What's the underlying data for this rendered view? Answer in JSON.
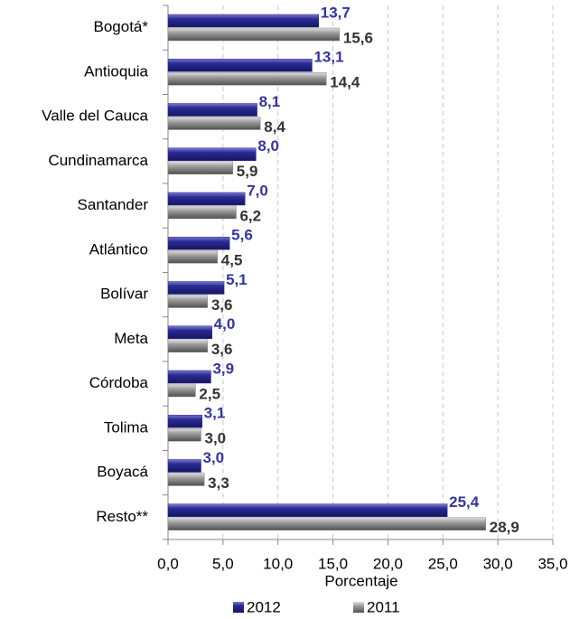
{
  "chart_data": {
    "type": "hbar",
    "categories": [
      "Bogotá*",
      "Antioquia",
      "Valle del Cauca",
      "Cundinamarca",
      "Santander",
      "Atlántico",
      "Bolívar",
      "Meta",
      "Córdoba",
      "Tolima",
      "Boyacá",
      "Resto**"
    ],
    "series": [
      {
        "name": "2012",
        "color": "#2b2b96",
        "label_color": "#3535a0",
        "values": [
          13.7,
          13.1,
          8.1,
          8.0,
          7.0,
          5.6,
          5.1,
          4.0,
          3.9,
          3.1,
          3.0,
          25.4
        ],
        "value_labels": [
          "13,7",
          "13,1",
          "8,1",
          "8,0",
          "7,0",
          "5,6",
          "5,1",
          "4,0",
          "3,9",
          "3,1",
          "3,0",
          "25,4"
        ]
      },
      {
        "name": "2011",
        "color": "#8a8a8a",
        "label_color": "#333333",
        "values": [
          15.6,
          14.4,
          8.4,
          5.9,
          6.2,
          4.5,
          3.6,
          3.6,
          2.5,
          3.0,
          3.3,
          28.9
        ],
        "value_labels": [
          "15,6",
          "14,4",
          "8,4",
          "5,9",
          "6,2",
          "4,5",
          "3,6",
          "3,6",
          "2,5",
          "3,0",
          "3,3",
          "28,9"
        ]
      }
    ],
    "x_label": "Porcentaje",
    "xlim": [
      0,
      35
    ],
    "xticks": [
      {
        "value": 0,
        "label": "0,0"
      },
      {
        "value": 5,
        "label": "5,0"
      },
      {
        "value": 10,
        "label": "10,0"
      },
      {
        "value": 15,
        "label": "15,0"
      },
      {
        "value": 20,
        "label": "20,0"
      },
      {
        "value": 25,
        "label": "25,0"
      },
      {
        "value": 30,
        "label": "30,0"
      },
      {
        "value": 35,
        "label": "35,0"
      }
    ],
    "grid": true,
    "legend": "bottom"
  }
}
